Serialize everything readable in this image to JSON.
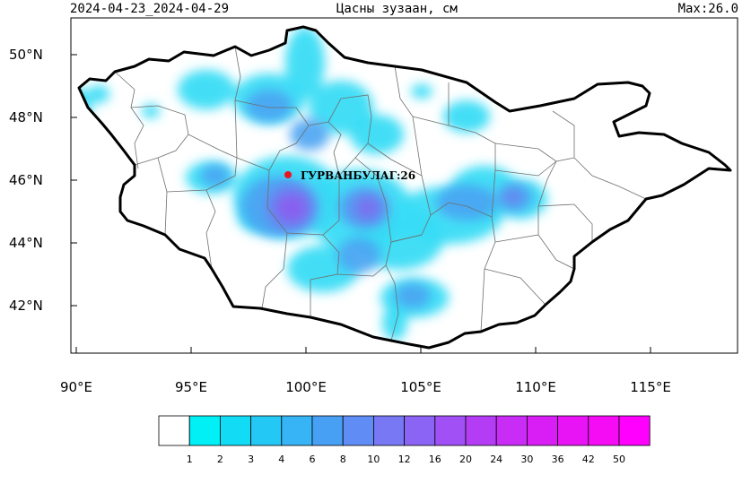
{
  "header": {
    "date_range": "2024-04-23_2024-04-29",
    "title": "Цасны зузаан, см",
    "max_label": "Max:26.0"
  },
  "axes": {
    "lat_labels": [
      "50°N",
      "48°N",
      "46°N",
      "44°N",
      "42°N"
    ],
    "lon_labels": [
      "90°E",
      "95°E",
      "100°E",
      "105°E",
      "110°E",
      "115°E"
    ]
  },
  "station": {
    "label": "ГУРВАНБУЛАГ:26",
    "value": 26,
    "marker_color": "#e8141e"
  },
  "colorbar": {
    "levels": [
      "1",
      "2",
      "3",
      "4",
      "6",
      "8",
      "10",
      "12",
      "16",
      "20",
      "24",
      "30",
      "36",
      "42",
      "50"
    ],
    "colors": [
      "#ffffff",
      "#00f0f5",
      "#12dcf5",
      "#24c8f5",
      "#36b4f5",
      "#48a0f5",
      "#608cf5",
      "#7878f5",
      "#8c64f5",
      "#a050f5",
      "#b43cf5",
      "#c82cf5",
      "#d81ef5",
      "#e814f5",
      "#f50cf5",
      "#ff00ff"
    ]
  },
  "snow_field": {
    "light_color": "#38dcf5",
    "mid_color": "#4aa4f2",
    "deep_color": "#9650ee"
  }
}
